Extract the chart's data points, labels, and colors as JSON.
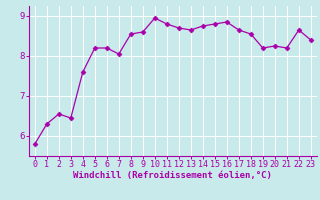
{
  "x": [
    0,
    1,
    2,
    3,
    4,
    5,
    6,
    7,
    8,
    9,
    10,
    11,
    12,
    13,
    14,
    15,
    16,
    17,
    18,
    19,
    20,
    21,
    22,
    23
  ],
  "y": [
    5.8,
    6.3,
    6.55,
    6.45,
    7.6,
    8.2,
    8.2,
    8.05,
    8.55,
    8.6,
    8.95,
    8.8,
    8.7,
    8.65,
    8.75,
    8.8,
    8.85,
    8.65,
    8.55,
    8.2,
    8.25,
    8.2,
    8.65,
    8.4
  ],
  "line_color": "#aa00aa",
  "marker": "D",
  "marker_size": 2.5,
  "bg_color": "#c8eaea",
  "grid_color": "#ffffff",
  "xlabel": "Windchill (Refroidissement éolien,°C)",
  "xlim": [
    -0.5,
    23.5
  ],
  "ylim": [
    5.5,
    9.25
  ],
  "yticks": [
    6,
    7,
    8,
    9
  ],
  "xticks": [
    0,
    1,
    2,
    3,
    4,
    5,
    6,
    7,
    8,
    9,
    10,
    11,
    12,
    13,
    14,
    15,
    16,
    17,
    18,
    19,
    20,
    21,
    22,
    23
  ],
  "tick_color": "#aa00aa",
  "tick_fontsize": 6,
  "xlabel_fontsize": 6.5,
  "xlabel_color": "#aa00aa",
  "ytick_fontsize": 6.5,
  "spine_color": "#aa00aa"
}
